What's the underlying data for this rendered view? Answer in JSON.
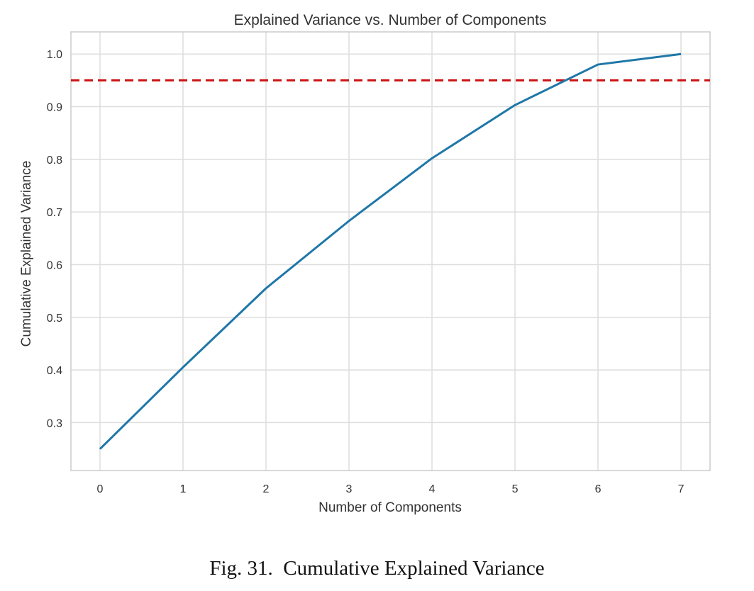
{
  "chart_data": {
    "type": "line",
    "title": "Explained Variance vs. Number of Components",
    "xlabel": "Number of Components",
    "ylabel": "Cumulative Explained Variance",
    "x": [
      0,
      1,
      2,
      3,
      4,
      5,
      6,
      7
    ],
    "series": [
      {
        "values": [
          0.25,
          0.405,
          0.555,
          0.683,
          0.802,
          0.903,
          0.98,
          1.0
        ],
        "color": "#1f77a8"
      }
    ],
    "reference_line": {
      "y": 0.95,
      "style": "dashed",
      "color": "#cc1111"
    },
    "x_ticks": [
      "0",
      "1",
      "2",
      "3",
      "4",
      "5",
      "6",
      "7"
    ],
    "y_ticks": [
      "0.3",
      "0.4",
      "0.5",
      "0.6",
      "0.7",
      "0.8",
      "0.9",
      "1.0"
    ],
    "xlim": [
      -0.35,
      7.35
    ],
    "ylim": [
      0.209,
      1.042
    ],
    "grid": true
  },
  "caption": "Fig. 31.  Cumulative Explained Variance"
}
